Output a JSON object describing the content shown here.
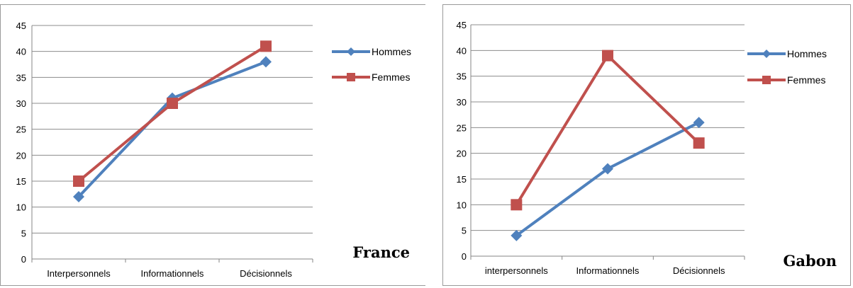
{
  "chart_data": [
    {
      "type": "line",
      "categories": [
        "Interpersonnels",
        "Informationnels",
        "Décisionnels"
      ],
      "series": [
        {
          "name": "Hommes",
          "values": [
            12,
            31,
            38
          ],
          "color": "#4f81bd",
          "marker": "diamond"
        },
        {
          "name": "Femmes",
          "values": [
            15,
            30,
            41
          ],
          "color": "#c0504d",
          "marker": "square"
        }
      ],
      "ylim": [
        0,
        45
      ],
      "yticks": [
        0,
        5,
        10,
        15,
        20,
        25,
        30,
        35,
        40,
        45
      ],
      "grid": true,
      "legend": "right",
      "label": "France"
    },
    {
      "type": "line",
      "categories": [
        "interpersonnels",
        "Informationnels",
        "Décisionnels"
      ],
      "series": [
        {
          "name": "Hommes",
          "values": [
            4,
            17,
            26
          ],
          "color": "#4f81bd",
          "marker": "diamond"
        },
        {
          "name": "Femmes",
          "values": [
            10,
            39,
            22
          ],
          "color": "#c0504d",
          "marker": "square"
        }
      ],
      "ylim": [
        0,
        45
      ],
      "yticks": [
        0,
        5,
        10,
        15,
        20,
        25,
        30,
        35,
        40,
        45
      ],
      "grid": true,
      "legend": "right",
      "label": "Gabon"
    }
  ]
}
